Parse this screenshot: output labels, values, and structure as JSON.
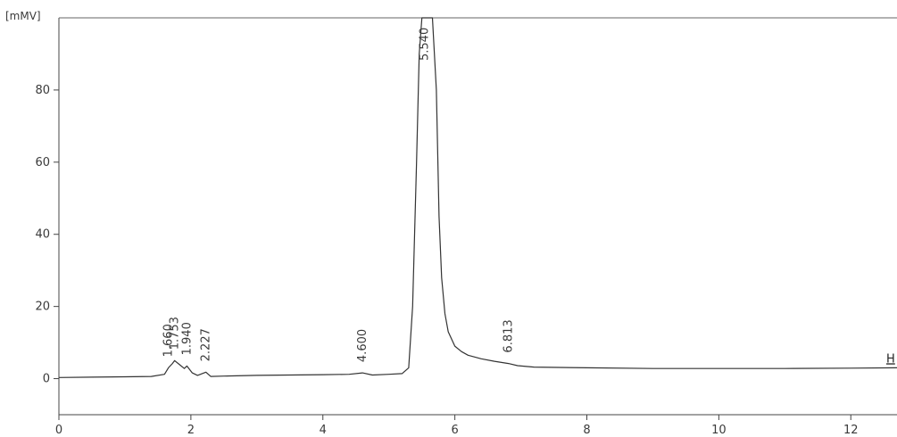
{
  "chart_data": {
    "type": "line",
    "ylabel_unit": "[mMV]",
    "xlim": [
      0,
      12.7
    ],
    "ylim": [
      -10,
      100
    ],
    "x_ticks": [
      0,
      2,
      4,
      6,
      8,
      10,
      12
    ],
    "y_ticks": [
      0,
      20,
      40,
      60,
      80
    ],
    "grid": false,
    "series": [
      {
        "x": [
          0,
          0.5,
          1.0,
          1.4,
          1.6,
          1.66,
          1.72,
          1.753,
          1.82,
          1.9,
          1.94,
          2.02,
          2.1,
          2.227,
          2.3,
          2.5,
          3.0,
          3.5,
          4.0,
          4.4,
          4.6,
          4.75,
          5.0,
          5.2,
          5.3,
          5.36,
          5.42,
          5.46,
          5.5,
          5.54,
          5.6,
          5.66,
          5.72,
          5.76,
          5.8,
          5.85,
          5.9,
          6.0,
          6.1,
          6.2,
          6.4,
          6.6,
          6.813,
          6.95,
          7.2,
          8.0,
          9.0,
          10.0,
          11.0,
          12.0,
          12.7
        ],
        "y": [
          0.3,
          0.4,
          0.5,
          0.6,
          1.2,
          3.0,
          4.2,
          5.0,
          4.0,
          2.8,
          3.5,
          1.6,
          0.9,
          1.8,
          0.6,
          0.7,
          0.9,
          1.0,
          1.1,
          1.2,
          1.6,
          1.0,
          1.2,
          1.4,
          3.0,
          20,
          60,
          90,
          100,
          100,
          100,
          100,
          80,
          45,
          28,
          18,
          13,
          9,
          7.5,
          6.5,
          5.5,
          4.8,
          4.2,
          3.6,
          3.2,
          3.0,
          2.8,
          2.8,
          2.8,
          2.9,
          3.0
        ]
      }
    ],
    "peak_labels": [
      {
        "x": 1.66,
        "text": "1.660"
      },
      {
        "x": 1.753,
        "text": "1.753"
      },
      {
        "x": 1.94,
        "text": "1.940"
      },
      {
        "x": 2.227,
        "text": "2.227"
      },
      {
        "x": 4.6,
        "text": "4.600"
      },
      {
        "x": 5.54,
        "text": "5.540"
      },
      {
        "x": 6.813,
        "text": "6.813"
      }
    ],
    "edge_text": "H"
  }
}
